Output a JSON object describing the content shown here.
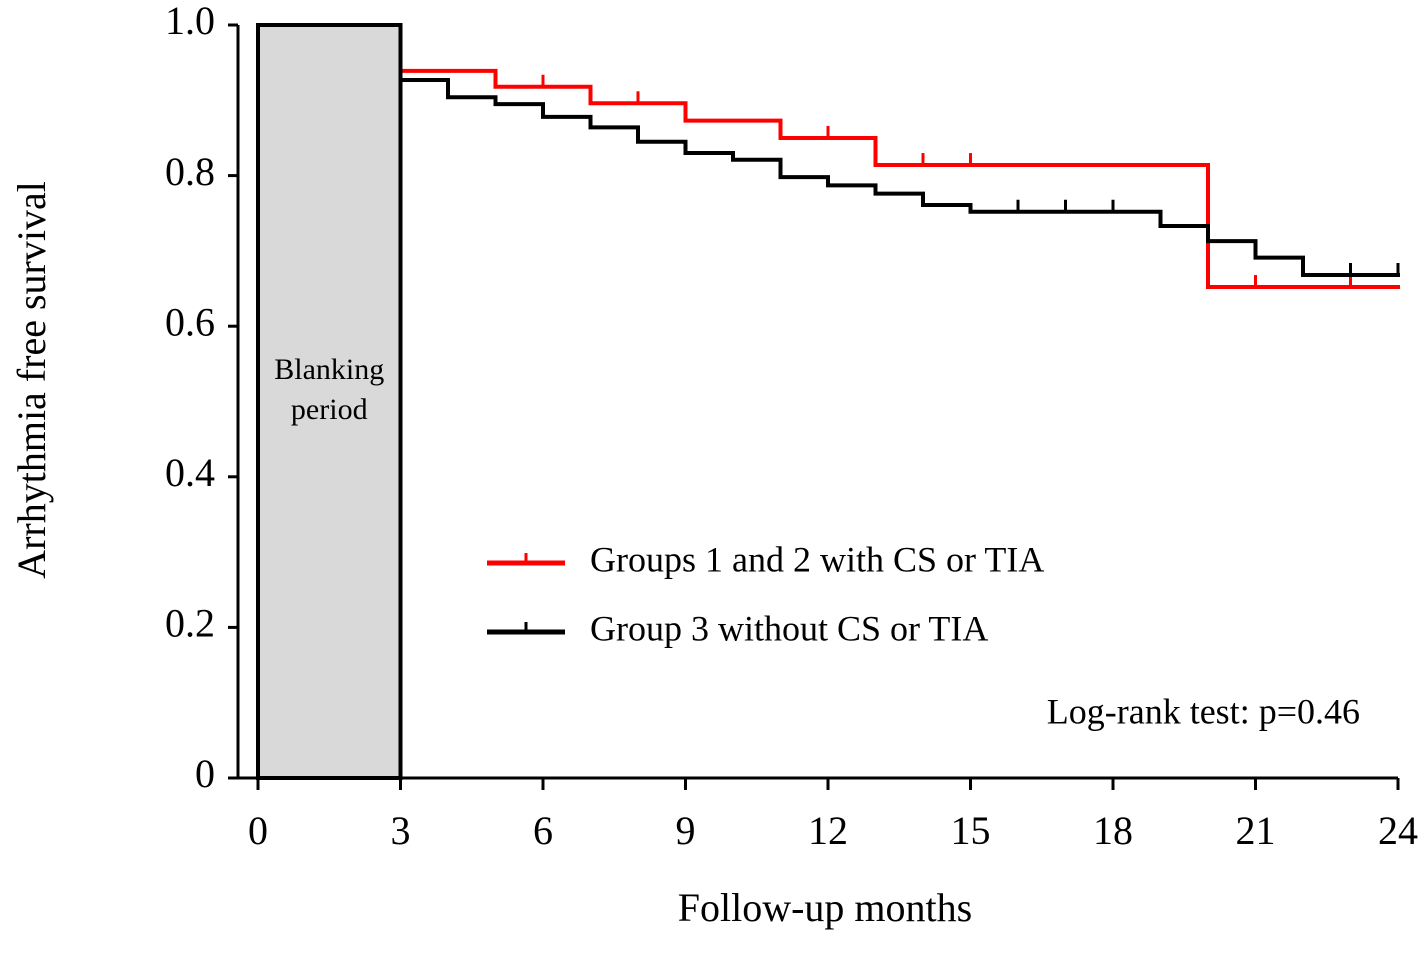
{
  "chart_data": {
    "type": "step",
    "x_label": "Follow-up months",
    "y_label": "Arrhythmia free survival",
    "xlim": [
      0,
      24
    ],
    "xticks": [
      0,
      3,
      6,
      9,
      12,
      15,
      18,
      21,
      24
    ],
    "ylim": [
      0,
      1
    ],
    "yticks": [
      0,
      0.2,
      0.4,
      0.6,
      0.8,
      {
        "value": 1,
        "label": "1.0"
      }
    ],
    "shaded_span": [
      0,
      3
    ],
    "shaded_color": "#d9d9d9",
    "shaded_label": [
      "Blanking",
      "period"
    ],
    "annotation": "Log-rank test: p=0.46",
    "series": [
      {
        "name": "Groups 1 and 2 with CS or TIA",
        "color": "#ff0000",
        "x": [
          0,
          3,
          5,
          7,
          9,
          11,
          13,
          20
        ],
        "values": [
          1,
          0.939,
          0.918,
          0.896,
          0.873,
          0.85,
          0.814,
          0.652
        ],
        "censored_x": [
          6,
          8,
          12,
          14,
          15,
          21,
          23
        ]
      },
      {
        "name": "Group 3 without CS or TIA",
        "color": "#000000",
        "x": [
          0,
          3,
          4,
          5,
          6,
          7,
          8,
          9,
          10,
          11,
          12,
          13,
          14,
          15,
          19,
          20,
          21,
          22
        ],
        "values": [
          1,
          0.927,
          0.904,
          0.895,
          0.878,
          0.864,
          0.845,
          0.83,
          0.821,
          0.798,
          0.787,
          0.776,
          0.761,
          0.752,
          0.733,
          0.713,
          0.691,
          0.668
        ],
        "censored_x": [
          16,
          17,
          18,
          23,
          24
        ]
      }
    ]
  }
}
